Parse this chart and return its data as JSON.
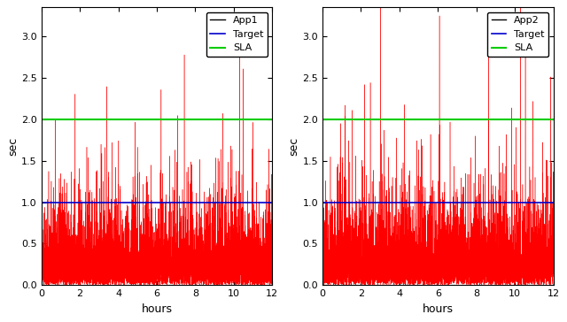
{
  "sla_value": 2.0,
  "target_value": 1.0,
  "x_max": 12,
  "y_max": 3.35,
  "y_min": 0,
  "yticks": [
    0,
    0.5,
    1.0,
    1.5,
    2.0,
    2.5,
    3.0
  ],
  "xticks": [
    0,
    2,
    4,
    6,
    8,
    10,
    12
  ],
  "xlabel": "hours",
  "ylabel": "sec",
  "app1_label": "App1",
  "app2_label": "App2",
  "target_label": "Target",
  "sla_label": "SLA",
  "app_color": "#ff0000",
  "app_legend_color": "#000000",
  "target_color": "#0000cc",
  "sla_color": "#00cc00",
  "n_points": 5000,
  "seed1": 7,
  "seed2": 13,
  "base_scale1": 0.28,
  "base_scale2": 0.3,
  "spike_prob1": 0.012,
  "spike_prob2": 0.01,
  "spike_scale1": 0.9,
  "spike_scale2": 0.8,
  "figure_width": 6.4,
  "figure_height": 3.64,
  "dpi": 100,
  "legend_fontsize": 8,
  "tick_fontsize": 8,
  "label_fontsize": 9
}
